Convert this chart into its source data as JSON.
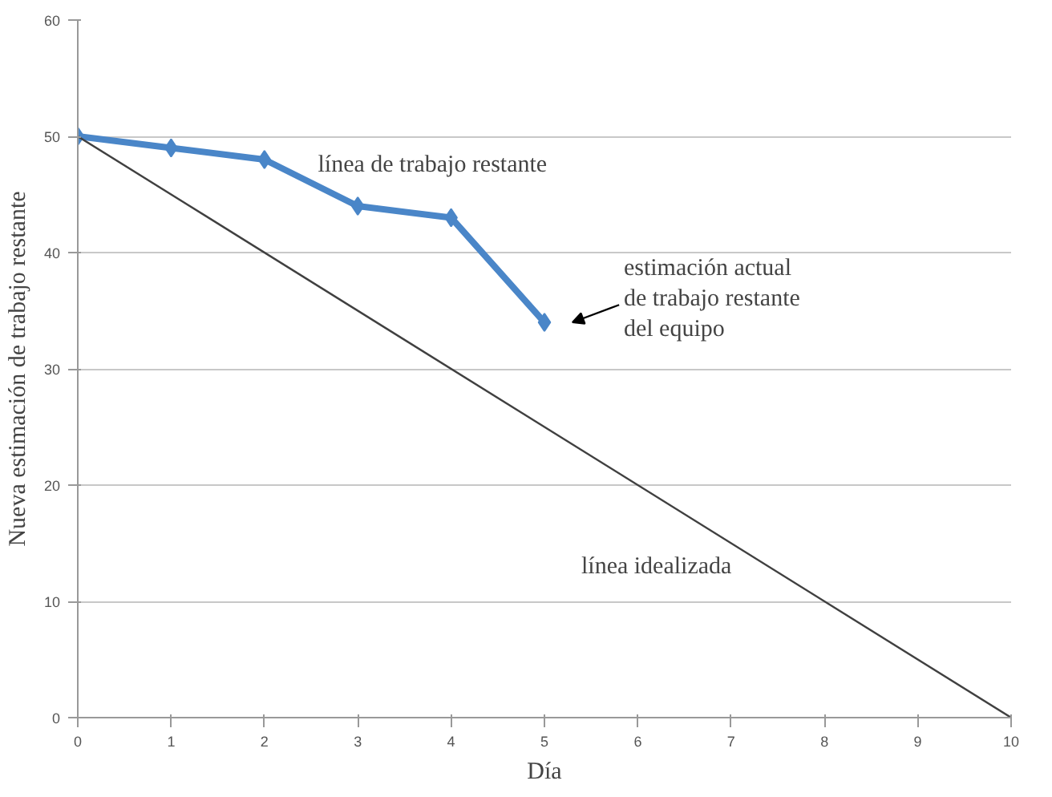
{
  "chart_data": {
    "type": "line",
    "xlabel": "Día",
    "ylabel": "Nueva estimación de trabajo restante",
    "series": [
      {
        "color": "#4a86c8",
        "x": [
          0,
          1,
          2,
          3,
          4,
          5
        ],
        "values": [
          50,
          49,
          48,
          44,
          43,
          34
        ],
        "marker": "diamond"
      },
      {
        "color": "#404040",
        "x": [
          0,
          10
        ],
        "values": [
          50,
          0
        ],
        "marker": "none"
      }
    ],
    "xlim": [
      0,
      10
    ],
    "xticks": [
      0,
      1,
      2,
      3,
      4,
      5,
      6,
      7,
      8,
      9,
      10
    ],
    "ylim": [
      0,
      60
    ],
    "yticks": [
      0,
      10,
      20,
      30,
      40,
      50,
      60
    ],
    "grid": "y",
    "annotations": [
      "línea de trabajo restante",
      "estimación actual\nde trabajo restante\ndel equipo",
      "línea idealizada"
    ]
  }
}
